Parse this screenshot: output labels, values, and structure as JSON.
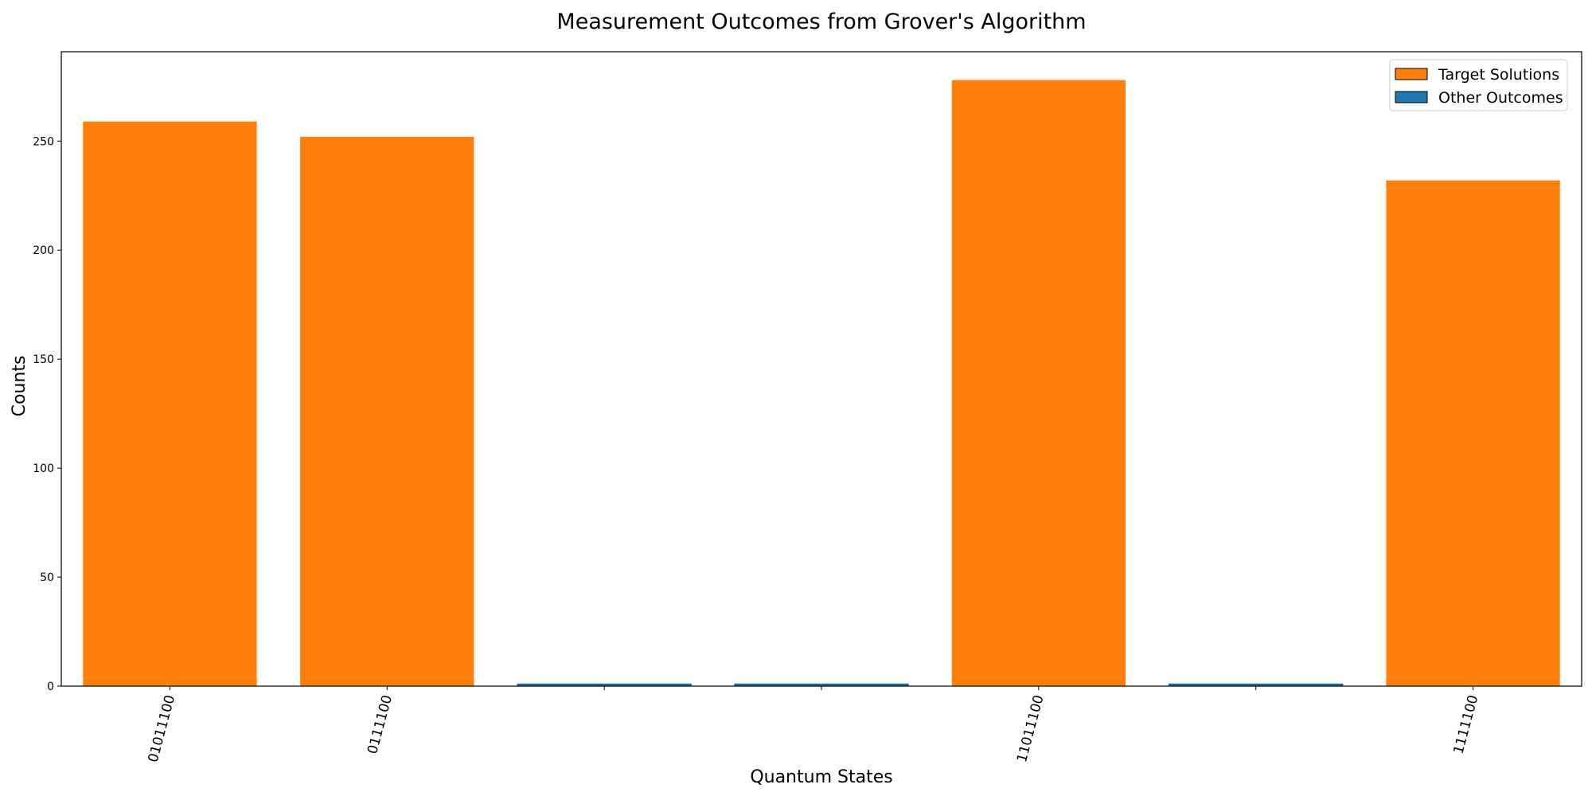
{
  "chart_data": {
    "type": "bar",
    "title": "Measurement Outcomes from Grover's Algorithm",
    "xlabel": "Quantum States",
    "ylabel": "Counts",
    "ylim": [
      0,
      291
    ],
    "yticks": [
      0,
      50,
      100,
      150,
      200,
      250
    ],
    "categories": [
      "01011100",
      "0111100",
      "",
      "",
      "11011100",
      "",
      "1111100"
    ],
    "values": [
      259,
      252,
      1,
      1,
      278,
      1,
      232
    ],
    "is_target": [
      true,
      true,
      false,
      false,
      true,
      false,
      true
    ],
    "legend": {
      "position": "top-right",
      "entries": [
        {
          "label": "Target Solutions",
          "color": "#ff7f0e"
        },
        {
          "label": "Other Outcomes",
          "color": "#1f77b4"
        }
      ]
    },
    "colors": {
      "target": "#ff7f0e",
      "other": "#1f77b4"
    },
    "grid": false
  }
}
